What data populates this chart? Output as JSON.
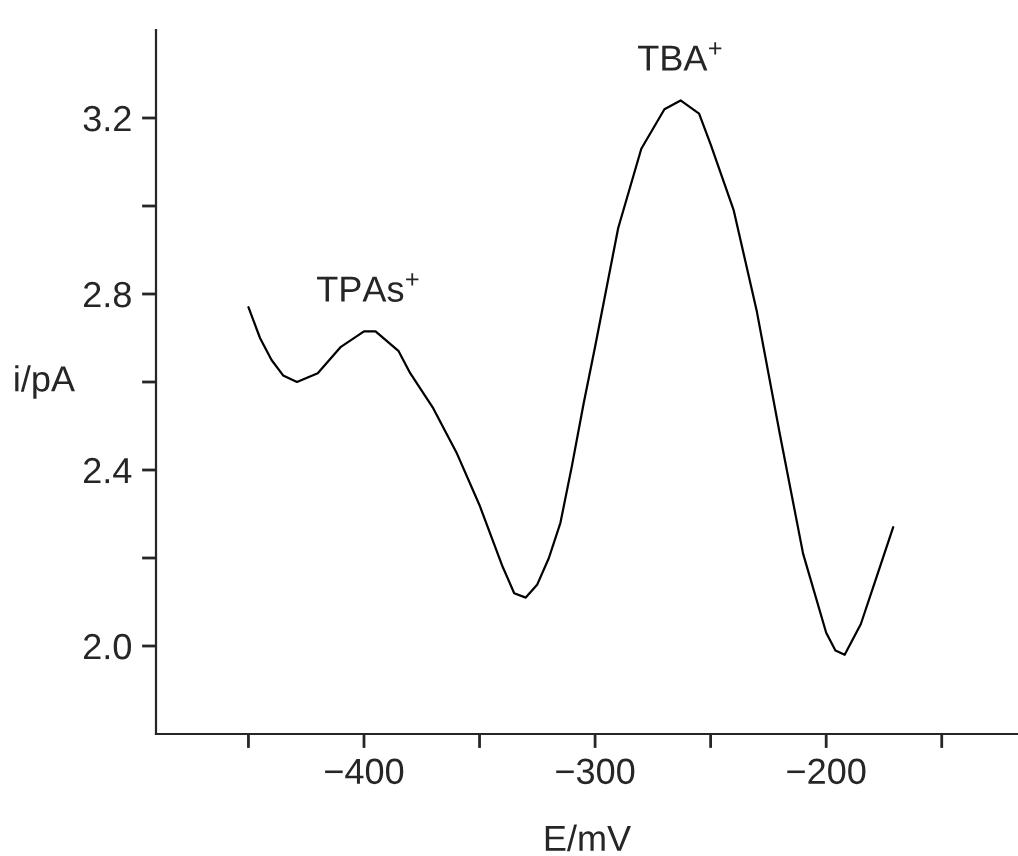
{
  "chart_data": {
    "type": "line",
    "xlabel": "E/mV",
    "ylabel": "i/pA",
    "color": "#000000",
    "x": [
      -450,
      -445,
      -440,
      -435,
      -429,
      -420,
      -410,
      -400,
      -395,
      -385,
      -380,
      -370,
      -360,
      -350,
      -340,
      -335,
      -330,
      -325,
      -320,
      -315,
      -310,
      -305,
      -300,
      -290,
      -280,
      -270,
      -263,
      -255,
      -250,
      -240,
      -230,
      -220,
      -210,
      -200,
      -196,
      -192,
      -185,
      -178,
      -171
    ],
    "values": [
      2.77,
      2.7,
      2.65,
      2.615,
      2.6,
      2.62,
      2.68,
      2.715,
      2.715,
      2.67,
      2.62,
      2.54,
      2.44,
      2.32,
      2.18,
      2.12,
      2.11,
      2.14,
      2.2,
      2.28,
      2.41,
      2.55,
      2.68,
      2.95,
      3.13,
      3.22,
      3.24,
      3.21,
      3.14,
      2.99,
      2.76,
      2.48,
      2.21,
      2.03,
      1.99,
      1.98,
      2.05,
      2.16,
      2.27
    ],
    "xlim": [
      -490,
      -117
    ],
    "ylim": [
      1.8,
      3.4
    ],
    "xticks": [
      {
        "value": -450,
        "label": null
      },
      {
        "value": -400,
        "label": "−400"
      },
      {
        "value": -350,
        "label": null
      },
      {
        "value": -300,
        "label": "−300"
      },
      {
        "value": -250,
        "label": null
      },
      {
        "value": -200,
        "label": "−200"
      },
      {
        "value": -150,
        "label": null
      }
    ],
    "yticks": [
      {
        "value": 2.0,
        "label": "2.0"
      },
      {
        "value": 2.2,
        "label": null
      },
      {
        "value": 2.4,
        "label": "2.4"
      },
      {
        "value": 2.6,
        "label": null
      },
      {
        "value": 2.8,
        "label": "2.8"
      },
      {
        "value": 3.0,
        "label": null
      },
      {
        "value": 3.2,
        "label": "3.2"
      }
    ],
    "annotations": [
      {
        "text": "TPAs$^{+}$",
        "x": -398,
        "y": 2.715
      },
      {
        "text": "TBA$^{+}$",
        "x": -263,
        "y": 3.24
      }
    ],
    "grid": false,
    "legend": false,
    "marker": "none",
    "line_style": "solid"
  }
}
